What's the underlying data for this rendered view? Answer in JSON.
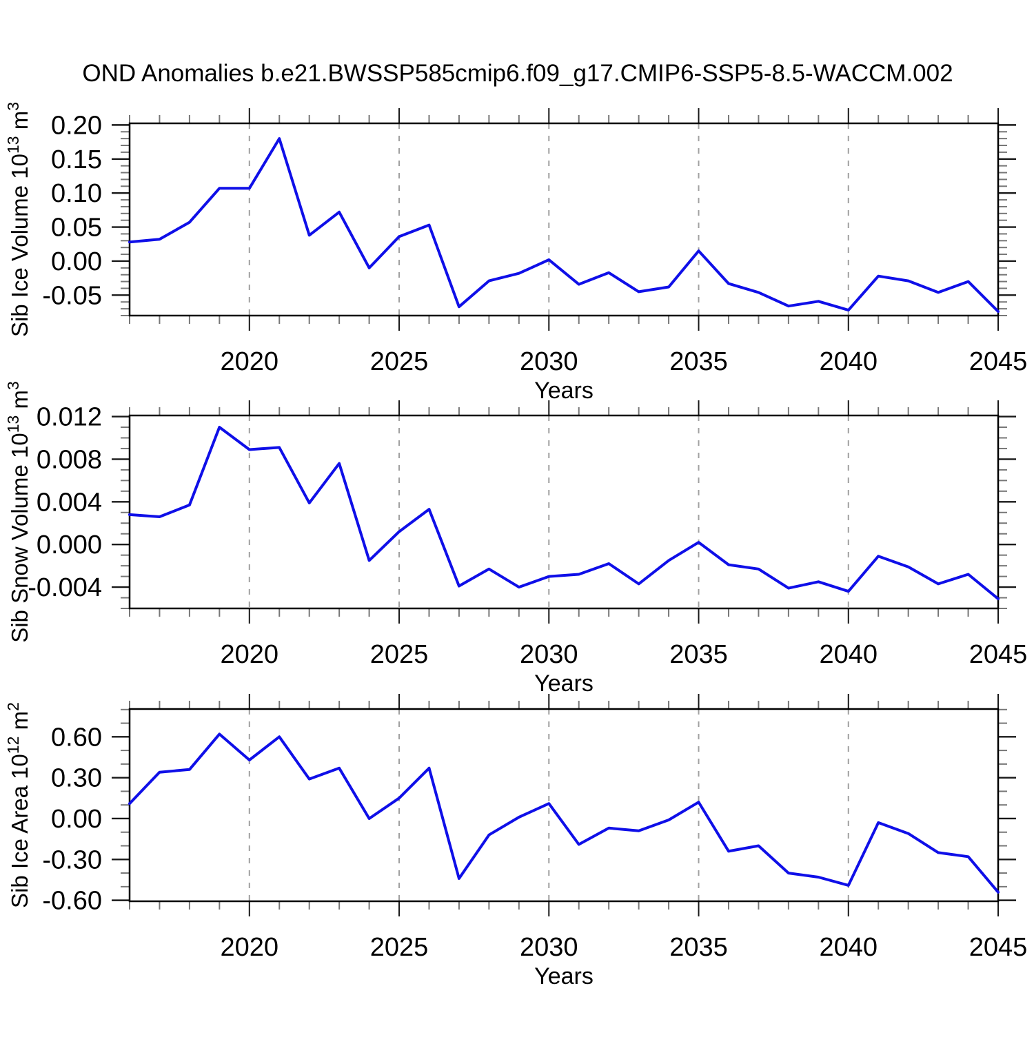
{
  "title": "OND Anomalies b.e21.BWSSP585cmip6.f09_g17.CMIP6-SSP5-8.5-WACCM.002",
  "colors": {
    "line": "#0f0fe8",
    "frame": "#000000",
    "grid": "#a0a0a0",
    "major_tick": "#181818",
    "minor_tick": "#777777"
  },
  "x_axis": {
    "label": "Years",
    "years": [
      2016,
      2017,
      2018,
      2019,
      2020,
      2021,
      2022,
      2023,
      2024,
      2025,
      2026,
      2027,
      2028,
      2029,
      2030,
      2031,
      2032,
      2033,
      2034,
      2035,
      2036,
      2037,
      2038,
      2039,
      2040,
      2041,
      2042,
      2043,
      2044,
      2045
    ],
    "major_ticks": [
      2020,
      2025,
      2030,
      2035,
      2040,
      2045
    ],
    "tick_labels": [
      "2020",
      "2025",
      "2030",
      "2035",
      "2040",
      "2045"
    ],
    "gridline_years": [
      2020,
      2025,
      2030,
      2035,
      2040
    ],
    "minor_step": 1
  },
  "chart_data": [
    {
      "type": "line",
      "name": "sib-ice-volume",
      "ylabel": "Sib Ice Volume 10^13 m^3",
      "ylabel_parts": {
        "p0": "Sib Ice Volume 10",
        "s0": "13",
        "p1": " m",
        "s1": "3"
      },
      "ylim": [
        -0.08,
        0.2024
      ],
      "ytick_values": [
        0.2,
        0.15,
        0.1,
        0.05,
        0.0,
        -0.05
      ],
      "ytick_labels": [
        "0.20",
        "0.15",
        "0.10",
        "0.05",
        "0.00",
        "-0.05"
      ],
      "y_minor_step": 0.01,
      "values": [
        0.028,
        0.032,
        0.057,
        0.107,
        0.107,
        0.18,
        0.038,
        0.072,
        -0.01,
        0.036,
        0.053,
        -0.067,
        -0.029,
        -0.018,
        0.002,
        -0.034,
        -0.017,
        -0.045,
        -0.038,
        0.015,
        -0.033,
        -0.046,
        -0.066,
        -0.059,
        -0.072,
        -0.022,
        -0.029,
        -0.046,
        -0.03,
        -0.074
      ]
    },
    {
      "type": "line",
      "name": "sib-snow-volume",
      "ylabel": "Sib Snow Volume 10^13 m^3",
      "ylabel_parts": {
        "p0": "Sib Snow Volume 10",
        "s0": "13",
        "p1": " m",
        "s1": "3"
      },
      "ylim": [
        -0.006,
        0.0121
      ],
      "ytick_values": [
        0.012,
        0.008,
        0.004,
        0.0,
        -0.004
      ],
      "ytick_labels": [
        "0.012",
        "0.008",
        "0.004",
        "0.000",
        "-0.004"
      ],
      "y_minor_step": 0.001,
      "values": [
        0.0028,
        0.0026,
        0.0037,
        0.011,
        0.0089,
        0.0091,
        0.0039,
        0.0076,
        -0.0015,
        0.0012,
        0.0033,
        -0.0039,
        -0.0023,
        -0.004,
        -0.003,
        -0.0028,
        -0.0018,
        -0.0037,
        -0.0015,
        0.0002,
        -0.0019,
        -0.0023,
        -0.0041,
        -0.0035,
        -0.0044,
        -0.0011,
        -0.0021,
        -0.0037,
        -0.0028,
        -0.0051
      ]
    },
    {
      "type": "line",
      "name": "sib-ice-area",
      "ylabel": "Sib Ice Area 10^12 m^2",
      "ylabel_parts": {
        "p0": "Sib Ice Area 10",
        "s0": "12",
        "p1": " m",
        "s1": "2"
      },
      "ylim": [
        -0.607,
        0.804
      ],
      "ytick_values": [
        0.6,
        0.3,
        0.0,
        -0.3,
        -0.6
      ],
      "ytick_labels": [
        "0.60",
        "0.30",
        "0.00",
        "-0.30",
        "-0.60"
      ],
      "y_minor_step": 0.1,
      "values": [
        0.11,
        0.34,
        0.36,
        0.62,
        0.43,
        0.6,
        0.29,
        0.37,
        0.0,
        0.15,
        0.37,
        -0.44,
        -0.12,
        0.01,
        0.11,
        -0.19,
        -0.07,
        -0.09,
        -0.01,
        0.12,
        -0.24,
        -0.2,
        -0.4,
        -0.43,
        -0.49,
        -0.03,
        -0.11,
        -0.25,
        -0.28,
        -0.54
      ]
    }
  ]
}
